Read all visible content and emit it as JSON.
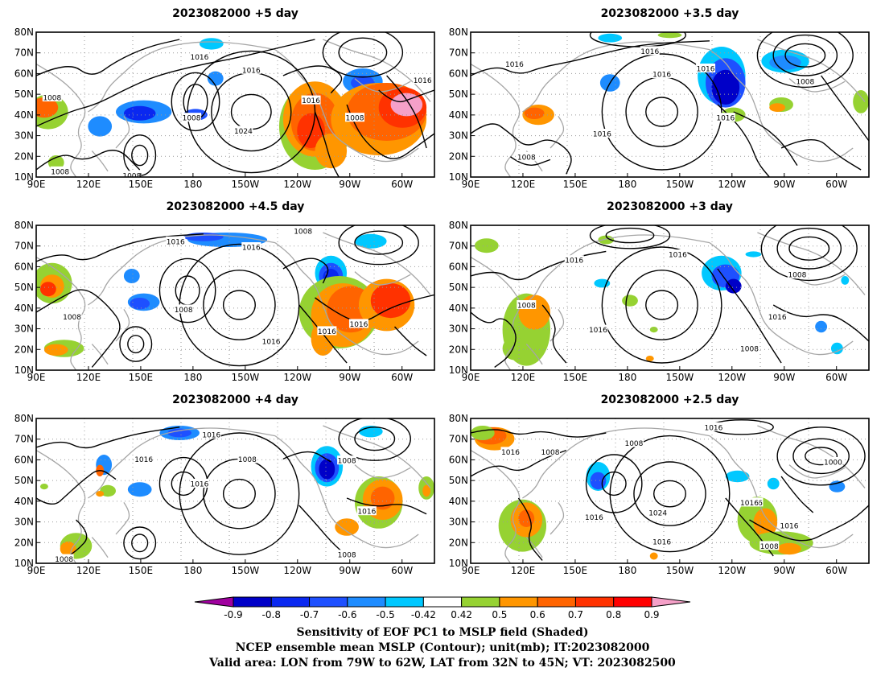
{
  "panels": [
    {
      "title": "2023082000 +5 day",
      "contour_labels": [
        "1016",
        "1016",
        "1008",
        "1008",
        "1024",
        "1016",
        "1008",
        "1016",
        "1008",
        "1008"
      ]
    },
    {
      "title": "2023082000 +3.5 day",
      "contour_labels": [
        "1016",
        "1016",
        "1016",
        "1016",
        "1008",
        "1016",
        "1016",
        "1008"
      ]
    },
    {
      "title": "2023082000 +4.5 day",
      "contour_labels": [
        "1016",
        "1016",
        "1008",
        "1008",
        "1008",
        "1016",
        "1016",
        "1016"
      ]
    },
    {
      "title": "2023082000 +3 day",
      "contour_labels": [
        "1016",
        "1016",
        "1008",
        "1016",
        "1008",
        "1016",
        "1008"
      ]
    },
    {
      "title": "2023082000 +4 day",
      "contour_labels": [
        "1016",
        "1016",
        "1008",
        "1016",
        "1008",
        "1016",
        "1008",
        "1008"
      ]
    },
    {
      "title": "2023082000 +2.5 day",
      "contour_labels": [
        "1016",
        "1016",
        "1008",
        "1008",
        "1000",
        "1024",
        "1016",
        "1016",
        "1016",
        "1016",
        "1016",
        "1008"
      ]
    }
  ],
  "axes": {
    "lat_labels": [
      "80N",
      "70N",
      "60N",
      "50N",
      "40N",
      "30N",
      "20N",
      "10N"
    ],
    "lon_labels": [
      "90E",
      "120E",
      "150E",
      "180",
      "150W",
      "120W",
      "90W",
      "60W"
    ]
  },
  "colorbar": {
    "tick_labels": [
      "-0.9",
      "-0.8",
      "-0.7",
      "-0.6",
      "-0.5",
      "-0.42",
      "0.42",
      "0.5",
      "0.6",
      "0.7",
      "0.8",
      "0.9"
    ],
    "colors": [
      "#a0009f",
      "#0000c8",
      "#0a28f0",
      "#1e50ff",
      "#1e8cff",
      "#00c8ff",
      "#ffffff",
      "#96d232",
      "#ff9600",
      "#ff6400",
      "#ff3200",
      "#ff0000",
      "#f5a0c8"
    ]
  },
  "caption": {
    "line1": "Sensitivity of EOF PC1 to MSLP field (Shaded)",
    "line2": "NCEP ensemble mean MSLP (Contour); unit(mb); IT:2023082000",
    "line3": "Valid area: LON from 79W to 62W, LAT from 32N to 45N; VT: 2023082500"
  }
}
